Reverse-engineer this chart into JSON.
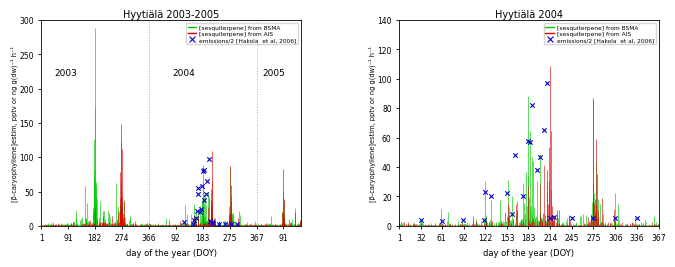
{
  "left_title": "Hyytiälä 2003-2005",
  "right_title": "Hyytiälä 2004",
  "xlabel": "day of the year (DOY)",
  "ylabel": "[β-caryophyllene]estim, pptv or ng g(dw)⁻¹ h⁻¹",
  "left_ylim": [
    0,
    300
  ],
  "right_ylim": [
    0,
    140
  ],
  "left_yticks": [
    0,
    50,
    100,
    150,
    200,
    250,
    300
  ],
  "right_yticks": [
    0,
    20,
    40,
    60,
    80,
    100,
    120,
    140
  ],
  "right_xticks": [
    1,
    32,
    61,
    92,
    122,
    153,
    183,
    214,
    245,
    275,
    306,
    336,
    367
  ],
  "right_xtick_labels": [
    "1",
    "32",
    "61",
    "92",
    "122",
    "153",
    "183",
    "214",
    "245",
    "275",
    "306",
    "336",
    "367"
  ],
  "color_bsma": "#00cc00",
  "color_ais": "#dd0000",
  "color_emissions": "#0000cc",
  "legend_entries": [
    "[sesquiterpene] from BSMA",
    "[sesquiterpene] from AIS",
    "emissions/2 [Hakola  et al, 2006]"
  ],
  "background_color": "#ffffff",
  "grid_color": "#aaaaaa"
}
